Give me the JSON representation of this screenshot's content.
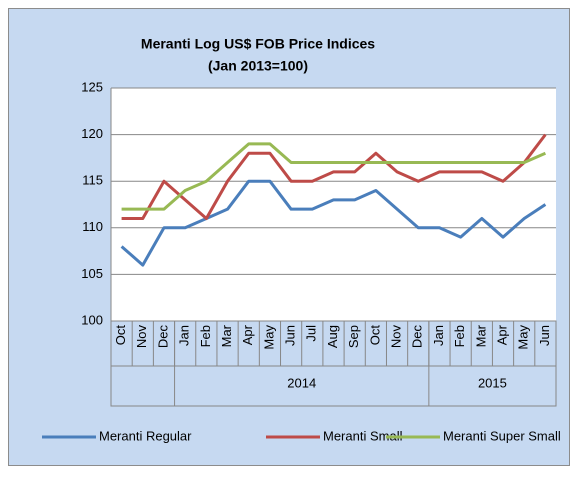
{
  "chart_data": {
    "type": "line",
    "title": [
      "Meranti Log US$ FOB Price Indices",
      "(Jan 2013=100)"
    ],
    "categories": [
      "Oct",
      "Nov",
      "Dec",
      "Jan",
      "Feb",
      "Mar",
      "Apr",
      "May",
      "Jun",
      "Jul",
      "Aug",
      "Sep",
      "Oct",
      "Nov",
      "Dec",
      "Jan",
      "Feb",
      "Mar",
      "Apr",
      "May",
      "Jun"
    ],
    "groups": [
      {
        "label": null,
        "count": 3
      },
      {
        "label": "2014",
        "count": 12
      },
      {
        "label": "2015",
        "count": 6
      }
    ],
    "series": [
      {
        "name": "Meranti Regular",
        "color": "#4a7ebb",
        "values": [
          108,
          106,
          110,
          110,
          111,
          112,
          115,
          115,
          112,
          112,
          113,
          113,
          114,
          112,
          110,
          110,
          109,
          111,
          109,
          111,
          112.5
        ]
      },
      {
        "name": "Meranti Small",
        "color": "#be4b48",
        "values": [
          111,
          111,
          115,
          113,
          111,
          115,
          118,
          118,
          115,
          115,
          116,
          116,
          118,
          116,
          115,
          116,
          116,
          116,
          115,
          117,
          120
        ]
      },
      {
        "name": "Meranti Super Small",
        "color": "#98b954",
        "values": [
          112,
          112,
          112,
          114,
          115,
          117,
          119,
          119,
          117,
          117,
          117,
          117,
          117,
          117,
          117,
          117,
          117,
          117,
          117,
          117,
          118
        ]
      }
    ],
    "ylim": [
      100,
      125
    ],
    "yticks": [
      100,
      105,
      110,
      115,
      120,
      125
    ],
    "grid": true,
    "legend": "bottom"
  }
}
